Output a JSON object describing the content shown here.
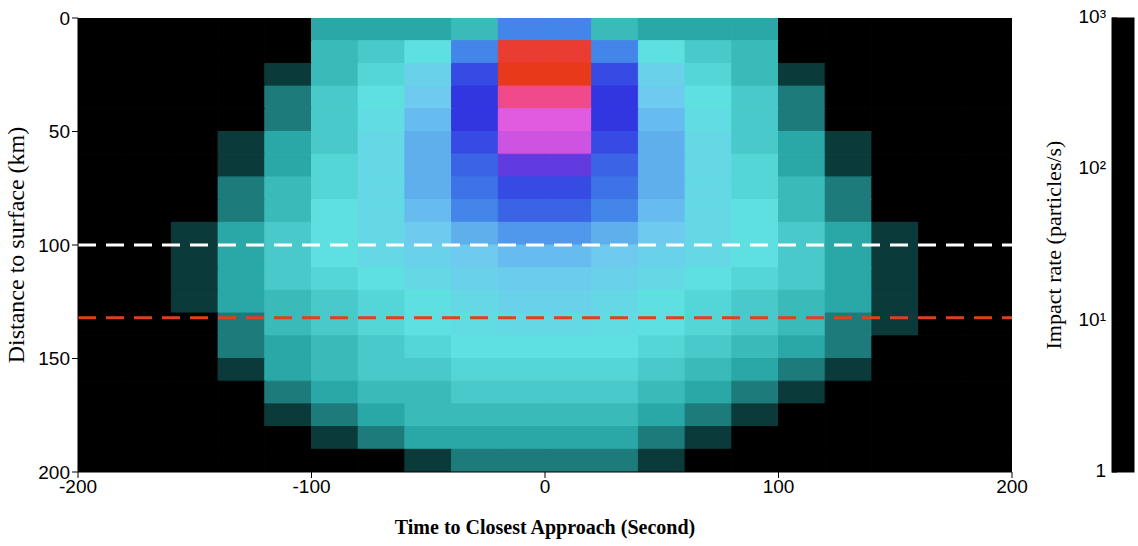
{
  "chart_data": {
    "type": "heatmap",
    "x_label": "Time to Closest Approach (Second)",
    "y_label": "Distance to surface (km)",
    "xlim": [
      -200,
      200
    ],
    "ylim": [
      0,
      200
    ],
    "xticks": [
      -200,
      -100,
      0,
      100,
      200
    ],
    "yticks": [
      0,
      50,
      100,
      150,
      200
    ],
    "x_bins": [
      -200,
      -180,
      -160,
      -140,
      -120,
      -100,
      -80,
      -60,
      -40,
      -20,
      0,
      20,
      40,
      60,
      80,
      100,
      120,
      140,
      160,
      180,
      200
    ],
    "y_bins": [
      0,
      10,
      20,
      30,
      40,
      50,
      60,
      70,
      80,
      90,
      100,
      110,
      120,
      130,
      140,
      150,
      160,
      170,
      180,
      190,
      200
    ],
    "cells": [
      [
        1,
        1,
        1,
        1,
        1,
        4,
        4,
        4,
        5,
        30,
        30,
        5,
        4,
        4,
        4,
        1,
        1,
        1,
        1,
        1
      ],
      [
        1,
        1,
        1,
        1,
        1,
        5,
        6,
        8,
        30,
        800,
        800,
        30,
        8,
        6,
        5,
        1,
        1,
        1,
        1,
        1
      ],
      [
        1,
        1,
        1,
        1,
        2,
        5,
        7,
        12,
        50,
        1000,
        1000,
        50,
        12,
        7,
        5,
        2,
        1,
        1,
        1,
        1
      ],
      [
        1,
        1,
        1,
        1,
        3,
        6,
        8,
        15,
        60,
        400,
        400,
        60,
        15,
        8,
        6,
        3,
        1,
        1,
        1,
        1
      ],
      [
        1,
        1,
        1,
        1,
        3,
        6,
        9,
        18,
        60,
        200,
        200,
        60,
        18,
        9,
        6,
        3,
        1,
        1,
        1,
        1
      ],
      [
        1,
        1,
        1,
        2,
        4,
        6,
        10,
        20,
        50,
        150,
        150,
        50,
        20,
        10,
        6,
        4,
        2,
        1,
        1,
        1
      ],
      [
        1,
        1,
        1,
        2,
        4,
        7,
        10,
        20,
        40,
        80,
        80,
        40,
        20,
        10,
        7,
        4,
        2,
        1,
        1,
        1
      ],
      [
        1,
        1,
        1,
        3,
        5,
        7,
        10,
        20,
        35,
        50,
        50,
        35,
        20,
        10,
        7,
        5,
        3,
        1,
        1,
        1
      ],
      [
        1,
        1,
        1,
        3,
        5,
        8,
        10,
        18,
        30,
        40,
        40,
        30,
        18,
        10,
        8,
        5,
        3,
        1,
        1,
        1
      ],
      [
        1,
        1,
        2,
        4,
        6,
        8,
        10,
        15,
        20,
        25,
        25,
        20,
        15,
        10,
        8,
        6,
        4,
        2,
        1,
        1
      ],
      [
        1,
        1,
        2,
        4,
        6,
        8,
        10,
        12,
        15,
        18,
        18,
        15,
        12,
        10,
        8,
        6,
        4,
        2,
        1,
        1
      ],
      [
        1,
        1,
        2,
        4,
        6,
        7,
        8,
        10,
        12,
        14,
        14,
        12,
        10,
        8,
        7,
        6,
        4,
        2,
        1,
        1
      ],
      [
        1,
        1,
        2,
        4,
        5,
        6,
        7,
        8,
        10,
        12,
        12,
        10,
        8,
        7,
        6,
        5,
        4,
        2,
        1,
        1
      ],
      [
        1,
        1,
        1,
        3,
        5,
        6,
        7,
        8,
        9,
        10,
        10,
        9,
        8,
        7,
        6,
        5,
        3,
        2,
        1,
        1
      ],
      [
        1,
        1,
        1,
        3,
        4,
        5,
        6,
        7,
        8,
        8,
        8,
        8,
        7,
        6,
        5,
        4,
        3,
        1,
        1,
        1
      ],
      [
        1,
        1,
        1,
        2,
        4,
        5,
        6,
        6,
        7,
        7,
        7,
        7,
        6,
        5,
        4,
        3,
        2,
        1,
        1,
        1
      ],
      [
        1,
        1,
        1,
        1,
        3,
        4,
        5,
        5,
        6,
        6,
        6,
        6,
        5,
        4,
        3,
        2,
        1,
        1,
        1,
        1
      ],
      [
        1,
        1,
        1,
        1,
        2,
        3,
        4,
        5,
        5,
        5,
        5,
        5,
        4,
        3,
        2,
        1,
        1,
        1,
        1,
        1
      ],
      [
        1,
        1,
        1,
        1,
        1,
        2,
        3,
        4,
        4,
        4,
        4,
        4,
        3,
        2,
        1,
        1,
        1,
        1,
        1,
        1
      ],
      [
        1,
        1,
        1,
        1,
        1,
        1,
        1,
        2,
        3,
        3,
        3,
        3,
        2,
        1,
        1,
        1,
        1,
        1,
        1,
        1
      ]
    ],
    "colorbar_label": "Impact rate (particles/s)",
    "colorbar_range": [
      1,
      1000
    ],
    "colorbar_ticks": [
      {
        "value": 1,
        "label": "1"
      },
      {
        "value": 10,
        "label": "10¹"
      },
      {
        "value": 100,
        "label": "10²"
      },
      {
        "value": 1000,
        "label": "10³"
      }
    ],
    "reference_lines": [
      {
        "y": 100,
        "color": "#ffffff",
        "line_style": "dashed"
      },
      {
        "y": 132,
        "color": "#e0401a",
        "line_style": "dashed"
      }
    ]
  }
}
